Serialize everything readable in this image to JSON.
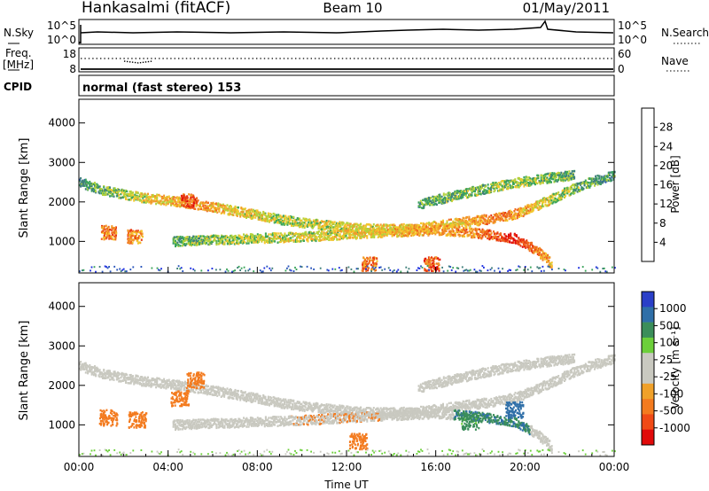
{
  "header": {
    "station": "Hankasalmi (fitACF)",
    "beam": "Beam 10",
    "date": "01/May/2011"
  },
  "top_strips": {
    "nsky_label": "N.Sky",
    "nsearch_label": "N.Search",
    "noise_ticks": [
      "10^5",
      "10^0"
    ],
    "freq_label": "Freq.",
    "freq_unit": "[MHz]",
    "freq_ticks": [
      "18",
      "8"
    ],
    "nave_label": "Nave",
    "nave_ticks": [
      "60",
      "0"
    ],
    "cpid_label": "CPID",
    "cpid_value": "normal (fast stereo) 153"
  },
  "colors": {
    "power_scale": [
      "#1c2fe0",
      "#2a55bb",
      "#3f7f7a",
      "#3aa45a",
      "#b3d23a",
      "#f4c62c",
      "#f29a2a",
      "#f06a1e",
      "#e83a14",
      "#e10a0a"
    ],
    "velocity_scale": [
      "#2a3fc8",
      "#2f6fa8",
      "#3b8e5a",
      "#6ccf3a",
      "#c9c9c0",
      "#c9c9c0",
      "#f0a12a",
      "#f37b1f",
      "#f04a16",
      "#e10a0a"
    ]
  },
  "chart_data": [
    {
      "type": "heatmap",
      "name": "power",
      "ylabel": "Slant Range [km]",
      "ylim": [
        200,
        4600
      ],
      "xlim": [
        0,
        24
      ],
      "yticks": [
        1000,
        2000,
        3000,
        4000
      ],
      "colorbar_label": "Power [dB]",
      "colorbar_ticks": [
        "4",
        "8",
        "12",
        "16",
        "20",
        "24",
        "28"
      ],
      "bands": [
        {
          "x": [
            0.0,
            1.0,
            2.0,
            3.0,
            4.0,
            5.0,
            6.0,
            7.0,
            8.0,
            9.0,
            10.0,
            11.0,
            12.0,
            13.0,
            14.0,
            15.0,
            16.0,
            17.0,
            18.0,
            19.0,
            19.8,
            21.0,
            22.0,
            23.0,
            24.0
          ],
          "y": [
            2520,
            2330,
            2210,
            2120,
            2060,
            1980,
            1890,
            1790,
            1690,
            1580,
            1500,
            1430,
            1380,
            1340,
            1330,
            1360,
            1420,
            1500,
            1560,
            1640,
            1760,
            2050,
            2320,
            2540,
            2700
          ],
          "intensity": [
            10,
            12,
            14,
            17,
            18,
            20,
            19,
            17,
            16,
            15,
            15,
            16,
            17,
            17,
            18,
            18,
            19,
            18,
            20,
            22,
            20,
            16,
            13,
            11,
            10
          ]
        },
        {
          "x": [
            4.2,
            6.0,
            8.0,
            10.0,
            12.0,
            14.0,
            16.0,
            17.5,
            18.5,
            19.5,
            20.5,
            21.2
          ],
          "y": [
            1020,
            1060,
            1100,
            1140,
            1200,
            1260,
            1310,
            1250,
            1180,
            1100,
            800,
            450
          ],
          "intensity": [
            12,
            14,
            15,
            16,
            17,
            18,
            20,
            21,
            24,
            28,
            22,
            18
          ]
        },
        {
          "x": [
            15.2,
            16.2,
            17.2,
            18.2,
            19.2,
            20.2,
            21.2,
            22.2
          ],
          "y": [
            1950,
            2100,
            2230,
            2360,
            2470,
            2560,
            2640,
            2700
          ],
          "intensity": [
            11,
            12,
            13,
            13,
            14,
            14,
            13,
            12
          ]
        }
      ],
      "patches": [
        {
          "x": 1.3,
          "y": 1250,
          "intensity": 22
        },
        {
          "x": 2.5,
          "y": 1150,
          "intensity": 21
        },
        {
          "x": 4.9,
          "y": 2050,
          "intensity": 25
        },
        {
          "x": 13.0,
          "y": 450,
          "intensity": 22
        },
        {
          "x": 15.8,
          "y": 450,
          "intensity": 24
        }
      ]
    },
    {
      "type": "heatmap",
      "name": "velocity",
      "ylabel": "Slant Range [km]",
      "xlabel": "Time UT",
      "ylim": [
        200,
        4600
      ],
      "xlim": [
        0,
        24
      ],
      "yticks": [
        1000,
        2000,
        3000,
        4000
      ],
      "xticks": [
        "00:00",
        "04:00",
        "08:00",
        "12:00",
        "16:00",
        "20:00",
        "00:00"
      ],
      "colorbar_label": "Velocity [m s⁻¹]",
      "colorbar_ticks": [
        "1000",
        "500",
        "100",
        "25",
        "-25",
        "-100",
        "-500",
        "-1000"
      ],
      "patches": [
        {
          "x": 1.3,
          "y": 1200,
          "velocity": -300
        },
        {
          "x": 2.6,
          "y": 1150,
          "velocity": -250
        },
        {
          "x": 4.5,
          "y": 1700,
          "velocity": -200
        },
        {
          "x": 5.2,
          "y": 2150,
          "velocity": -350
        },
        {
          "x": 12.5,
          "y": 600,
          "velocity": -200
        },
        {
          "x": 17.5,
          "y": 1100,
          "velocity": 150
        },
        {
          "x": 19.5,
          "y": 1400,
          "velocity": 400
        }
      ]
    }
  ]
}
